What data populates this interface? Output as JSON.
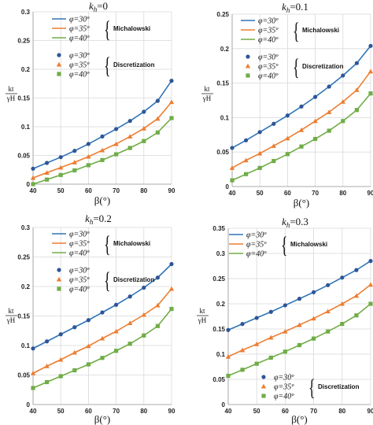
{
  "colors": {
    "phi30": "#2E75B6",
    "phi35": "#ED7D31",
    "phi40": "#70AD47",
    "phi30_marker": "#2F5597",
    "phi35_marker": "#ED7D31",
    "phi40_marker": "#70AD47"
  },
  "legend_items": {
    "phi30": "φ=30º",
    "phi35": "φ=35º",
    "phi40": "φ=40º"
  },
  "groups": {
    "michalowski": "Michalowski",
    "discretization": "Discretization"
  },
  "markers": {
    "phi30": "circle",
    "phi35": "triangle",
    "phi40": "square"
  },
  "y_axis_label": {
    "numerator": "k_t",
    "denominator": "γH"
  },
  "chart_data": [
    {
      "type": "line",
      "title": "k_h=0",
      "title_parts": {
        "main": "k",
        "sub": "h",
        "rest": "=0"
      },
      "xlabel": "β(°)",
      "x": [
        40,
        45,
        50,
        55,
        60,
        65,
        70,
        75,
        80,
        85,
        90
      ],
      "xticks": [
        40,
        50,
        60,
        70,
        80,
        90
      ],
      "ylim": [
        0,
        0.3
      ],
      "yticks": [
        0,
        0.05,
        0.1,
        0.15,
        0.2,
        0.25,
        0.3
      ],
      "ytick_labels": [
        "0",
        "0.05",
        "0.1",
        "0.15",
        "0.2",
        "0.25",
        "0.3"
      ],
      "grid": true,
      "legend_position": "top-left",
      "series": [
        {
          "name": "φ=30º",
          "group": "Michalowski",
          "style": "line",
          "values": [
            0.027,
            0.037,
            0.047,
            0.058,
            0.07,
            0.083,
            0.096,
            0.11,
            0.126,
            0.145,
            0.18
          ]
        },
        {
          "name": "φ=35º",
          "group": "Michalowski",
          "style": "line",
          "values": [
            0.011,
            0.02,
            0.029,
            0.038,
            0.048,
            0.059,
            0.07,
            0.083,
            0.097,
            0.114,
            0.143
          ]
        },
        {
          "name": "φ=40º",
          "group": "Michalowski",
          "style": "line",
          "values": [
            0.0,
            0.008,
            0.016,
            0.024,
            0.033,
            0.042,
            0.052,
            0.063,
            0.075,
            0.09,
            0.115
          ]
        },
        {
          "name": "φ=30º",
          "group": "Discretization",
          "style": "markers",
          "values": [
            0.027,
            0.037,
            0.047,
            0.058,
            0.07,
            0.083,
            0.096,
            0.11,
            0.126,
            0.145,
            0.18
          ]
        },
        {
          "name": "φ=35º",
          "group": "Discretization",
          "style": "markers",
          "values": [
            0.011,
            0.02,
            0.029,
            0.038,
            0.048,
            0.059,
            0.07,
            0.083,
            0.097,
            0.114,
            0.143
          ]
        },
        {
          "name": "φ=40º",
          "group": "Discretization",
          "style": "markers",
          "values": [
            0.0,
            0.008,
            0.016,
            0.024,
            0.033,
            0.042,
            0.052,
            0.063,
            0.075,
            0.09,
            0.115
          ]
        }
      ]
    },
    {
      "type": "line",
      "title": "k_h=0.1",
      "title_parts": {
        "main": "k",
        "sub": "h",
        "rest": "=0.1"
      },
      "xlabel": "β(°)",
      "x": [
        40,
        45,
        50,
        55,
        60,
        65,
        70,
        75,
        80,
        85,
        90
      ],
      "xticks": [
        40,
        50,
        60,
        70,
        80,
        90
      ],
      "ylim": [
        0,
        0.25
      ],
      "yticks": [
        0,
        0.05,
        0.1,
        0.15,
        0.2,
        0.25
      ],
      "ytick_labels": [
        "0",
        "0.05",
        "0.1",
        "0.15",
        "0.2",
        "0.25"
      ],
      "grid": true,
      "legend_position": "top-left",
      "series": [
        {
          "name": "φ=30º",
          "group": "Michalowski",
          "style": "line",
          "values": [
            0.056,
            0.067,
            0.079,
            0.091,
            0.103,
            0.116,
            0.13,
            0.145,
            0.161,
            0.179,
            0.204
          ]
        },
        {
          "name": "φ=35º",
          "group": "Michalowski",
          "style": "line",
          "values": [
            0.027,
            0.038,
            0.048,
            0.059,
            0.07,
            0.082,
            0.095,
            0.108,
            0.123,
            0.14,
            0.167
          ]
        },
        {
          "name": "φ=40º",
          "group": "Michalowski",
          "style": "line",
          "values": [
            0.009,
            0.018,
            0.027,
            0.037,
            0.047,
            0.058,
            0.069,
            0.081,
            0.095,
            0.111,
            0.135
          ]
        },
        {
          "name": "φ=30º",
          "group": "Discretization",
          "style": "markers",
          "values": [
            0.056,
            0.067,
            0.079,
            0.091,
            0.103,
            0.116,
            0.13,
            0.145,
            0.161,
            0.179,
            0.204
          ]
        },
        {
          "name": "φ=35º",
          "group": "Discretization",
          "style": "markers",
          "values": [
            0.027,
            0.038,
            0.048,
            0.059,
            0.07,
            0.082,
            0.095,
            0.108,
            0.123,
            0.14,
            0.167
          ]
        },
        {
          "name": "φ=40º",
          "group": "Discretization",
          "style": "markers",
          "values": [
            0.009,
            0.018,
            0.027,
            0.037,
            0.047,
            0.058,
            0.069,
            0.081,
            0.095,
            0.111,
            0.135
          ]
        }
      ]
    },
    {
      "type": "line",
      "title": "k_h=0.2",
      "title_parts": {
        "main": "k",
        "sub": "h",
        "rest": "=0.2"
      },
      "xlabel": "β(°)",
      "x": [
        40,
        45,
        50,
        55,
        60,
        65,
        70,
        75,
        80,
        85,
        90
      ],
      "xticks": [
        40,
        50,
        60,
        70,
        80,
        90
      ],
      "ylim": [
        0,
        0.3
      ],
      "yticks": [
        0,
        0.05,
        0.1,
        0.15,
        0.2,
        0.25,
        0.3
      ],
      "ytick_labels": [
        "0",
        "0.05",
        "0.1",
        "0.15",
        "0.2",
        "0.25",
        "0.3"
      ],
      "grid": true,
      "legend_position": "top-left",
      "series": [
        {
          "name": "φ=30º",
          "group": "Michalowski",
          "style": "line",
          "values": [
            0.095,
            0.107,
            0.119,
            0.131,
            0.143,
            0.156,
            0.169,
            0.183,
            0.198,
            0.215,
            0.238
          ]
        },
        {
          "name": "φ=35º",
          "group": "Michalowski",
          "style": "line",
          "values": [
            0.053,
            0.065,
            0.076,
            0.088,
            0.099,
            0.112,
            0.124,
            0.138,
            0.152,
            0.168,
            0.196
          ]
        },
        {
          "name": "φ=40º",
          "group": "Michalowski",
          "style": "line",
          "values": [
            0.028,
            0.038,
            0.048,
            0.058,
            0.068,
            0.079,
            0.091,
            0.103,
            0.117,
            0.133,
            0.162
          ]
        },
        {
          "name": "φ=30º",
          "group": "Discretization",
          "style": "markers",
          "values": [
            0.095,
            0.107,
            0.119,
            0.131,
            0.143,
            0.156,
            0.169,
            0.183,
            0.198,
            0.215,
            0.238
          ]
        },
        {
          "name": "φ=35º",
          "group": "Discretization",
          "style": "markers",
          "values": [
            0.053,
            0.065,
            0.076,
            0.088,
            0.099,
            0.112,
            0.124,
            0.138,
            0.152,
            0.168,
            0.196
          ]
        },
        {
          "name": "φ=40º",
          "group": "Discretization",
          "style": "markers",
          "values": [
            0.028,
            0.038,
            0.048,
            0.058,
            0.068,
            0.079,
            0.091,
            0.103,
            0.117,
            0.133,
            0.162
          ]
        }
      ]
    },
    {
      "type": "line",
      "title": "k_h=0.3",
      "title_parts": {
        "main": "k",
        "sub": "h",
        "rest": "=0.3"
      },
      "xlabel": "β(°)",
      "x": [
        40,
        45,
        50,
        55,
        60,
        65,
        70,
        75,
        80,
        85,
        90
      ],
      "xticks": [
        40,
        50,
        60,
        70,
        80,
        90
      ],
      "ylim": [
        0,
        0.35
      ],
      "yticks": [
        0,
        0.05,
        0.1,
        0.15,
        0.2,
        0.25,
        0.3,
        0.35
      ],
      "ytick_labels": [
        "0",
        "0.05",
        "0.1",
        "0.15",
        "0.2",
        "0.25",
        "0.3",
        "0.35"
      ],
      "grid": true,
      "legend_position": "top-left",
      "series": [
        {
          "name": "φ=30º",
          "group": "Michalowski",
          "style": "line",
          "values": [
            0.148,
            0.16,
            0.172,
            0.184,
            0.197,
            0.21,
            0.223,
            0.237,
            0.252,
            0.267,
            0.285
          ]
        },
        {
          "name": "φ=35º",
          "group": "Michalowski",
          "style": "line",
          "values": [
            0.095,
            0.108,
            0.12,
            0.133,
            0.145,
            0.158,
            0.171,
            0.185,
            0.2,
            0.216,
            0.238
          ]
        },
        {
          "name": "φ=40º",
          "group": "Michalowski",
          "style": "line",
          "values": [
            0.057,
            0.069,
            0.081,
            0.093,
            0.105,
            0.118,
            0.131,
            0.145,
            0.16,
            0.177,
            0.2
          ]
        },
        {
          "name": "φ=30º",
          "group": "Discretization",
          "style": "markers",
          "values": [
            0.148,
            0.16,
            0.172,
            0.184,
            0.197,
            0.21,
            0.223,
            0.237,
            0.252,
            0.267,
            0.285
          ]
        },
        {
          "name": "φ=35º",
          "group": "Discretization",
          "style": "markers",
          "values": [
            0.095,
            0.108,
            0.12,
            0.133,
            0.145,
            0.158,
            0.171,
            0.185,
            0.2,
            0.216,
            0.238
          ]
        },
        {
          "name": "φ=40º",
          "group": "Discretization",
          "style": "markers",
          "values": [
            0.057,
            0.069,
            0.081,
            0.093,
            0.105,
            0.118,
            0.131,
            0.145,
            0.16,
            0.177,
            0.2
          ]
        }
      ]
    }
  ]
}
